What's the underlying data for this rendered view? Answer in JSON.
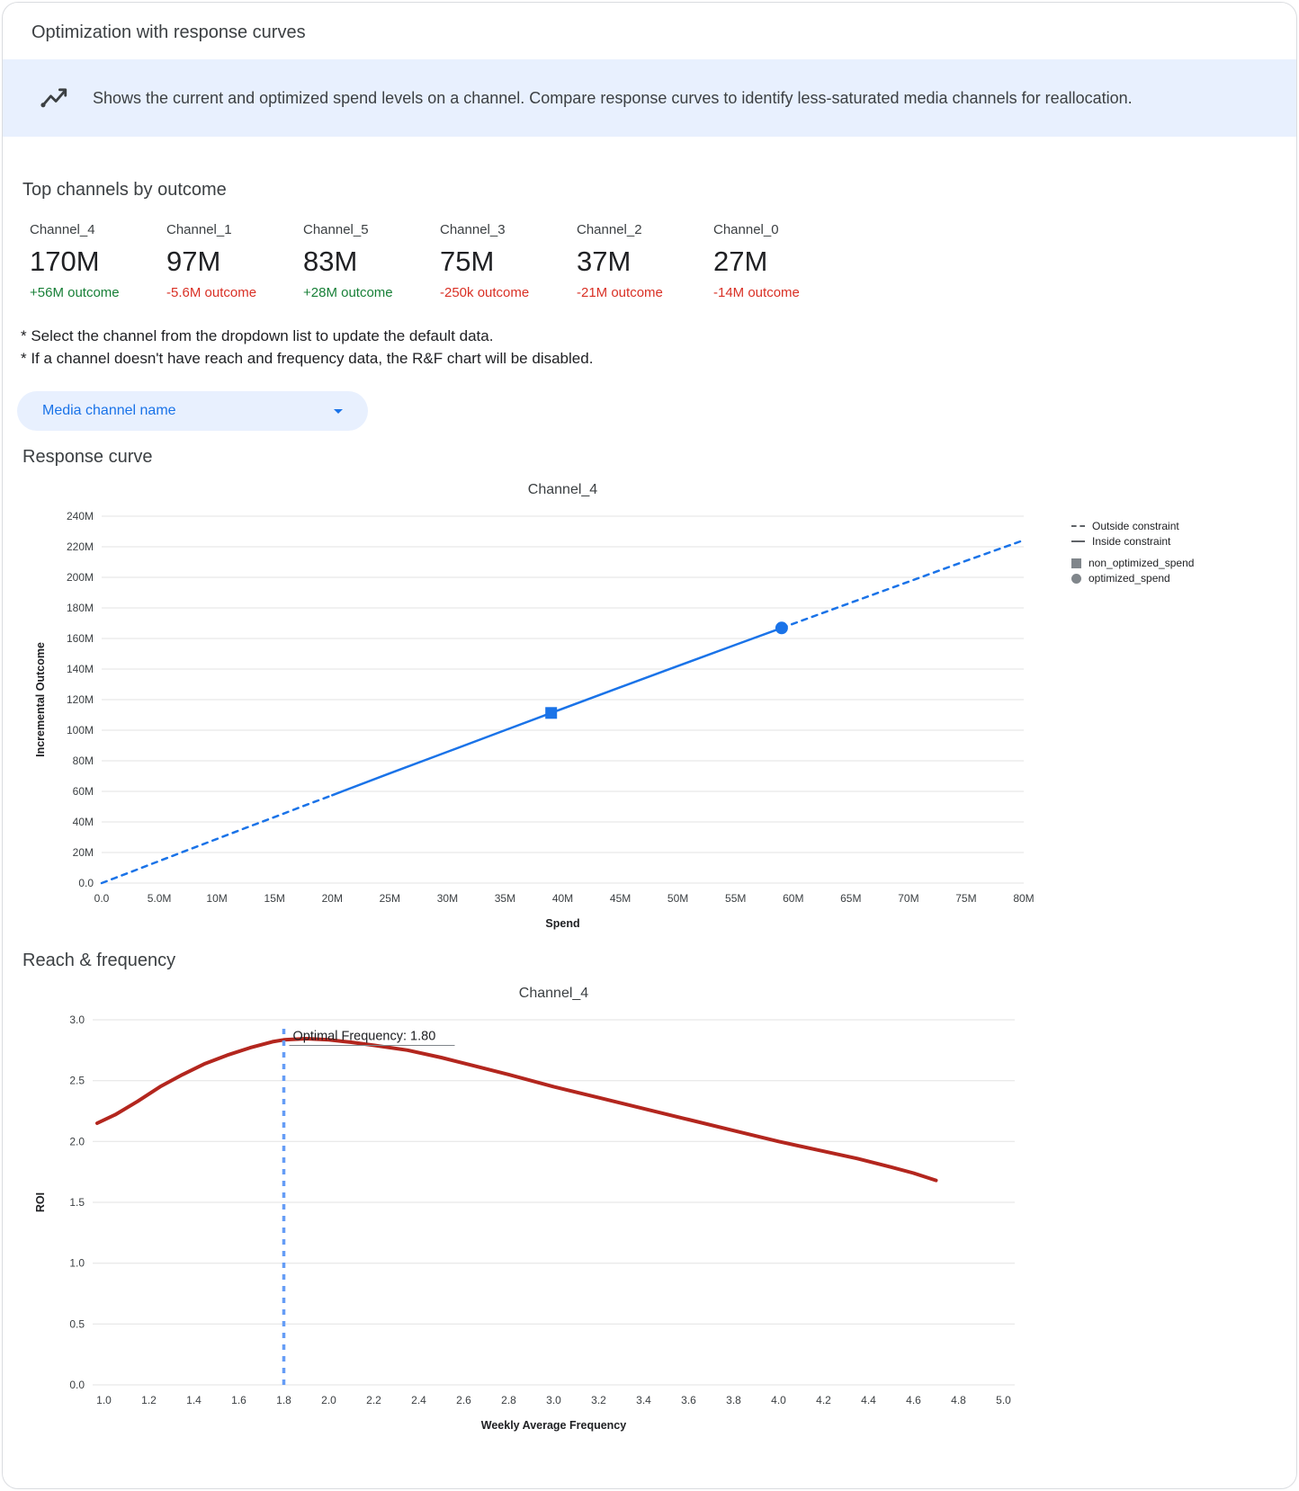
{
  "theme": {
    "accent": "#1a73e8",
    "banner-bg": "#e8f0fe",
    "pill-bg": "#e8f0fe",
    "positive": "#188038",
    "negative": "#d93025",
    "grid": "#e3e3e3",
    "text-dark": "#202124",
    "text-gray": "#3c4043",
    "muted": "#5f6368",
    "legend-marker": "#80868b",
    "border": "#dadce0"
  },
  "page": {
    "title": "Optimization with response curves",
    "banner": "Shows the current and optimized spend levels on a channel. Compare response curves to identify less-saturated media channels for reallocation."
  },
  "top_channels": {
    "heading": "Top channels by outcome",
    "channels": [
      {
        "name": "Channel_4",
        "value": "170M",
        "delta": "+56M outcome",
        "trend": "up"
      },
      {
        "name": "Channel_1",
        "value": "97M",
        "delta": "-5.6M outcome",
        "trend": "down"
      },
      {
        "name": "Channel_5",
        "value": "83M",
        "delta": "+28M outcome",
        "trend": "up"
      },
      {
        "name": "Channel_3",
        "value": "75M",
        "delta": "-250k outcome",
        "trend": "down"
      },
      {
        "name": "Channel_2",
        "value": "37M",
        "delta": "-21M outcome",
        "trend": "down"
      },
      {
        "name": "Channel_0",
        "value": "27M",
        "delta": "-14M outcome",
        "trend": "down"
      }
    ]
  },
  "notes": [
    "* Select the channel from the dropdown list to update the default data.",
    "* If a channel doesn't have reach and frequency data, the R&F chart will be disabled."
  ],
  "dropdown": {
    "label": "Media channel name"
  },
  "sections": {
    "response_curve": "Response curve",
    "reach_frequency": "Reach & frequency"
  },
  "chart_data": [
    {
      "type": "line",
      "title": "Channel_4",
      "xlabel": "Spend",
      "ylabel": "Incremental Outcome",
      "x_unit": "millions",
      "y_unit": "millions",
      "xlim": [
        0,
        80
      ],
      "ylim": [
        0,
        240
      ],
      "grid": "horizontal",
      "legend_position": "right",
      "xticks": [
        {
          "v": 0,
          "label": "0.0"
        },
        {
          "v": 5,
          "label": "5.0M"
        },
        {
          "v": 10,
          "label": "10M"
        },
        {
          "v": 15,
          "label": "15M"
        },
        {
          "v": 20,
          "label": "20M"
        },
        {
          "v": 25,
          "label": "25M"
        },
        {
          "v": 30,
          "label": "30M"
        },
        {
          "v": 35,
          "label": "35M"
        },
        {
          "v": 40,
          "label": "40M"
        },
        {
          "v": 45,
          "label": "45M"
        },
        {
          "v": 50,
          "label": "50M"
        },
        {
          "v": 55,
          "label": "55M"
        },
        {
          "v": 60,
          "label": "60M"
        },
        {
          "v": 65,
          "label": "65M"
        },
        {
          "v": 70,
          "label": "70M"
        },
        {
          "v": 75,
          "label": "75M"
        },
        {
          "v": 80,
          "label": "80M"
        }
      ],
      "yticks": [
        {
          "v": 0,
          "label": "0.0"
        },
        {
          "v": 20,
          "label": "20M"
        },
        {
          "v": 40,
          "label": "40M"
        },
        {
          "v": 60,
          "label": "60M"
        },
        {
          "v": 80,
          "label": "80M"
        },
        {
          "v": 100,
          "label": "100M"
        },
        {
          "v": 120,
          "label": "120M"
        },
        {
          "v": 140,
          "label": "140M"
        },
        {
          "v": 160,
          "label": "160M"
        },
        {
          "v": 180,
          "label": "180M"
        },
        {
          "v": 200,
          "label": "200M"
        },
        {
          "v": 220,
          "label": "220M"
        },
        {
          "v": 240,
          "label": "240M"
        }
      ],
      "series": [
        {
          "name": "outside-constraint-lower",
          "color": "#1a73e8",
          "width": 2.5,
          "dash": "6 6",
          "points": [
            [
              0,
              0
            ],
            [
              2.5,
              7.2
            ],
            [
              5,
              14.5
            ],
            [
              7.5,
              21.7
            ],
            [
              10,
              28.9
            ],
            [
              12.5,
              36.1
            ],
            [
              15,
              43.2
            ],
            [
              17.5,
              50.4
            ],
            [
              20,
              57.5
            ]
          ]
        },
        {
          "name": "inside-constraint",
          "color": "#1a73e8",
          "width": 2.5,
          "points": [
            [
              20,
              57.5
            ],
            [
              25,
              71.8
            ],
            [
              30,
              85.9
            ],
            [
              35,
              100.0
            ],
            [
              39,
              111.3
            ],
            [
              45,
              128.1
            ],
            [
              50,
              142.0
            ],
            [
              55,
              155.9
            ],
            [
              59,
              166.9
            ]
          ]
        },
        {
          "name": "outside-constraint-upper",
          "color": "#1a73e8",
          "width": 2.5,
          "dash": "6 6",
          "points": [
            [
              59,
              166.9
            ],
            [
              65,
              183.4
            ],
            [
              70,
              197.1
            ],
            [
              75,
              210.8
            ],
            [
              80,
              224.3
            ]
          ]
        }
      ],
      "markers": [
        {
          "name": "non_optimized_spend",
          "shape": "square",
          "x": 39,
          "y": 111.3,
          "color": "#1a73e8"
        },
        {
          "name": "optimized_spend",
          "shape": "circle",
          "x": 59,
          "y": 166.9,
          "color": "#1a73e8"
        }
      ],
      "legend": [
        {
          "sample": "dash",
          "label": "Outside constraint"
        },
        {
          "sample": "solid",
          "label": "Inside constraint"
        },
        {
          "sample": "square",
          "label": "non_optimized_spend"
        },
        {
          "sample": "circle",
          "label": "optimized_spend"
        }
      ]
    },
    {
      "type": "line",
      "title": "Channel_4",
      "xlabel": "Weekly Average Frequency",
      "ylabel": "ROI",
      "xlim": [
        0.95,
        5.05
      ],
      "ylim": [
        0,
        3
      ],
      "grid": "horizontal",
      "xticks": [
        {
          "v": 1.0,
          "label": "1.0"
        },
        {
          "v": 1.2,
          "label": "1.2"
        },
        {
          "v": 1.4,
          "label": "1.4"
        },
        {
          "v": 1.6,
          "label": "1.6"
        },
        {
          "v": 1.8,
          "label": "1.8"
        },
        {
          "v": 2.0,
          "label": "2.0"
        },
        {
          "v": 2.2,
          "label": "2.2"
        },
        {
          "v": 2.4,
          "label": "2.4"
        },
        {
          "v": 2.6,
          "label": "2.6"
        },
        {
          "v": 2.8,
          "label": "2.8"
        },
        {
          "v": 3.0,
          "label": "3.0"
        },
        {
          "v": 3.2,
          "label": "3.2"
        },
        {
          "v": 3.4,
          "label": "3.4"
        },
        {
          "v": 3.6,
          "label": "3.6"
        },
        {
          "v": 3.8,
          "label": "3.8"
        },
        {
          "v": 4.0,
          "label": "4.0"
        },
        {
          "v": 4.2,
          "label": "4.2"
        },
        {
          "v": 4.4,
          "label": "4.4"
        },
        {
          "v": 4.6,
          "label": "4.6"
        },
        {
          "v": 4.8,
          "label": "4.8"
        },
        {
          "v": 5.0,
          "label": "5.0"
        }
      ],
      "yticks": [
        {
          "v": 0,
          "label": "0.0"
        },
        {
          "v": 0.5,
          "label": "0.5"
        },
        {
          "v": 1.0,
          "label": "1.0"
        },
        {
          "v": 1.5,
          "label": "1.5"
        },
        {
          "v": 2.0,
          "label": "2.0"
        },
        {
          "v": 2.5,
          "label": "2.5"
        },
        {
          "v": 3.0,
          "label": "3.0"
        }
      ],
      "series": [
        {
          "name": "roi-curve",
          "color": "#b3261e",
          "width": 4,
          "points": [
            [
              0.97,
              2.15
            ],
            [
              1.05,
              2.22
            ],
            [
              1.15,
              2.33
            ],
            [
              1.25,
              2.45
            ],
            [
              1.35,
              2.55
            ],
            [
              1.45,
              2.64
            ],
            [
              1.55,
              2.71
            ],
            [
              1.65,
              2.77
            ],
            [
              1.75,
              2.82
            ],
            [
              1.8,
              2.835
            ],
            [
              1.9,
              2.845
            ],
            [
              2.0,
              2.835
            ],
            [
              2.1,
              2.815
            ],
            [
              2.2,
              2.79
            ],
            [
              2.35,
              2.75
            ],
            [
              2.5,
              2.69
            ],
            [
              2.65,
              2.62
            ],
            [
              2.8,
              2.55
            ],
            [
              3.0,
              2.45
            ],
            [
              3.2,
              2.36
            ],
            [
              3.4,
              2.27
            ],
            [
              3.6,
              2.18
            ],
            [
              3.8,
              2.09
            ],
            [
              4.0,
              2.0
            ],
            [
              4.2,
              1.92
            ],
            [
              4.35,
              1.86
            ],
            [
              4.5,
              1.79
            ],
            [
              4.6,
              1.74
            ],
            [
              4.7,
              1.68
            ]
          ]
        }
      ],
      "vline": {
        "x": 1.8,
        "y1": 0,
        "y2": 2.93,
        "color": "#669df6",
        "label": "Optimal Frequency: 1.80"
      }
    }
  ]
}
